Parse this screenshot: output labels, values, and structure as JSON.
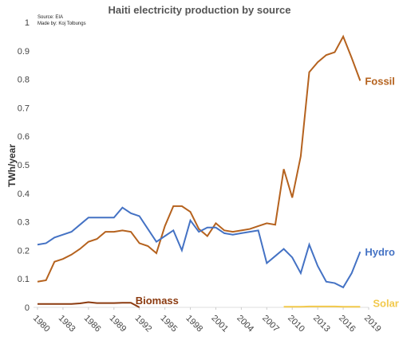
{
  "chart_data": {
    "type": "line",
    "title": "Haiti electricity production by source",
    "source": "Source: EIA",
    "credit": "Made by: Koj Tolbungs",
    "y_label": "TWh/year",
    "x": [
      1980,
      1981,
      1982,
      1983,
      1984,
      1985,
      1986,
      1987,
      1988,
      1989,
      1990,
      1991,
      1992,
      1993,
      1994,
      1995,
      1996,
      1997,
      1998,
      1999,
      2000,
      2001,
      2002,
      2003,
      2004,
      2005,
      2006,
      2007,
      2008,
      2009,
      2010,
      2011,
      2012,
      2013,
      2014,
      2015,
      2016,
      2017,
      2018
    ],
    "series": [
      {
        "name": "Fossil",
        "color": "#b5621e",
        "values": [
          0.09,
          0.095,
          0.16,
          0.17,
          0.185,
          0.205,
          0.23,
          0.24,
          0.265,
          0.265,
          0.27,
          0.265,
          0.225,
          0.215,
          0.19,
          0.285,
          0.355,
          0.355,
          0.335,
          0.275,
          0.25,
          0.295,
          0.27,
          0.265,
          0.27,
          0.275,
          0.285,
          0.295,
          0.29,
          0.485,
          0.385,
          0.53,
          0.825,
          0.86,
          0.885,
          0.895,
          0.95,
          0.875,
          0.795
        ]
      },
      {
        "name": "Hydro",
        "color": "#4472c4",
        "values": [
          0.22,
          0.225,
          0.245,
          0.255,
          0.265,
          0.29,
          0.315,
          0.315,
          0.315,
          0.315,
          0.35,
          0.33,
          0.32,
          0.275,
          0.23,
          0.25,
          0.27,
          0.2,
          0.305,
          0.265,
          0.28,
          0.28,
          0.26,
          0.255,
          0.26,
          0.265,
          0.27,
          0.155,
          0.18,
          0.205,
          0.175,
          0.12,
          0.22,
          0.145,
          0.09,
          0.085,
          0.07,
          0.12,
          0.195
        ]
      },
      {
        "name": "Biomass",
        "color": "#8b3a0f",
        "values": [
          0.012,
          0.012,
          0.012,
          0.012,
          0.012,
          0.014,
          0.018,
          0.015,
          0.015,
          0.015,
          0.016,
          0.016,
          0,
          null,
          null,
          null,
          null,
          null,
          null,
          null,
          null,
          null,
          null,
          null,
          null,
          null,
          null,
          null,
          null,
          null,
          null,
          null,
          null,
          null,
          null,
          null,
          null,
          null,
          null
        ]
      },
      {
        "name": "Solar",
        "color": "#f2c94c",
        "values": [
          null,
          null,
          null,
          null,
          null,
          null,
          null,
          null,
          null,
          null,
          null,
          null,
          null,
          null,
          null,
          null,
          null,
          null,
          null,
          null,
          null,
          null,
          null,
          null,
          null,
          null,
          null,
          null,
          null,
          0.002,
          0.002,
          0.002,
          0.003,
          0.003,
          0.003,
          0.003,
          0.002,
          0.002,
          0.002
        ]
      }
    ],
    "xlim": [
      1980,
      2019
    ],
    "xticks": [
      1980,
      1983,
      1986,
      1989,
      1992,
      1995,
      1998,
      2001,
      2004,
      2007,
      2010,
      2013,
      2016,
      2019
    ],
    "ylim": [
      0,
      1
    ],
    "yticks": [
      0,
      0.1,
      0.2,
      0.3,
      0.4,
      0.5,
      0.6,
      0.7,
      0.8,
      0.9,
      1
    ]
  }
}
